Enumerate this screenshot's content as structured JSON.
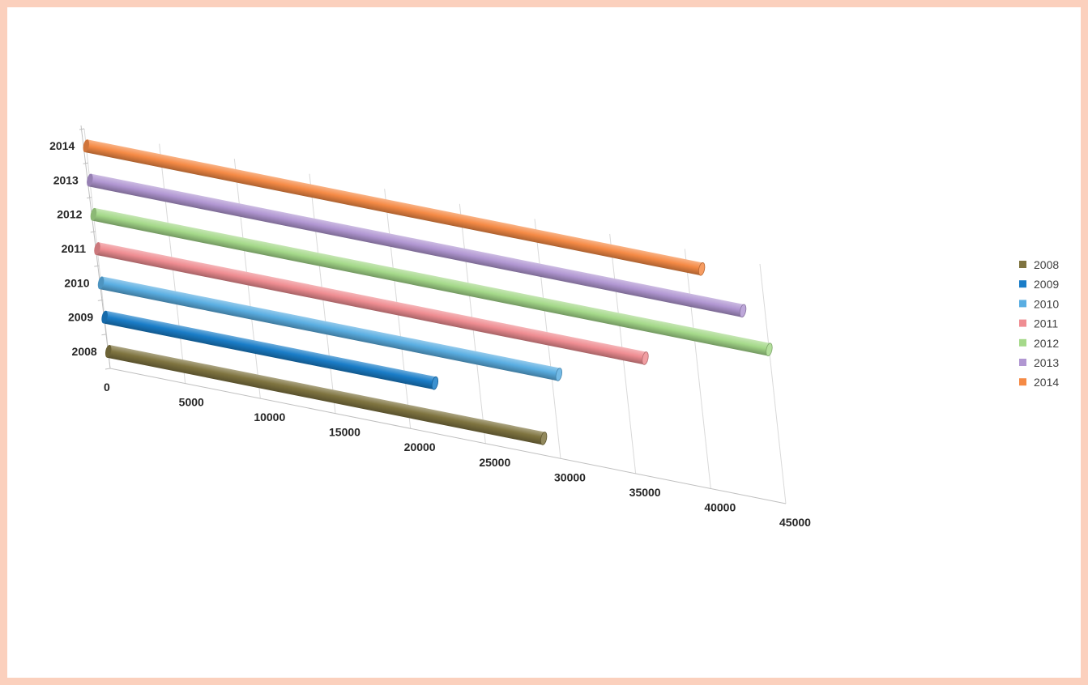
{
  "chart_data": {
    "type": "bar",
    "orientation": "horizontal",
    "style": "3d-cylinder",
    "title": "",
    "xlabel": "",
    "ylabel": "",
    "categories": [
      "2008",
      "2009",
      "2010",
      "2011",
      "2012",
      "2013",
      "2014"
    ],
    "values": [
      29000,
      22000,
      30500,
      36500,
      45000,
      43500,
      41000
    ],
    "colors": [
      "#7f7440",
      "#1a7dc8",
      "#5aaee2",
      "#ef8d92",
      "#a5d98a",
      "#b197d2",
      "#f58a45"
    ],
    "xlim": [
      0,
      45000
    ],
    "xticks": [
      "0",
      "5000",
      "10000",
      "15000",
      "20000",
      "25000",
      "30000",
      "35000",
      "40000",
      "45000"
    ],
    "grid": true,
    "legend": {
      "position": "right",
      "entries": [
        "2008",
        "2009",
        "2010",
        "2011",
        "2012",
        "2013",
        "2014"
      ]
    }
  }
}
